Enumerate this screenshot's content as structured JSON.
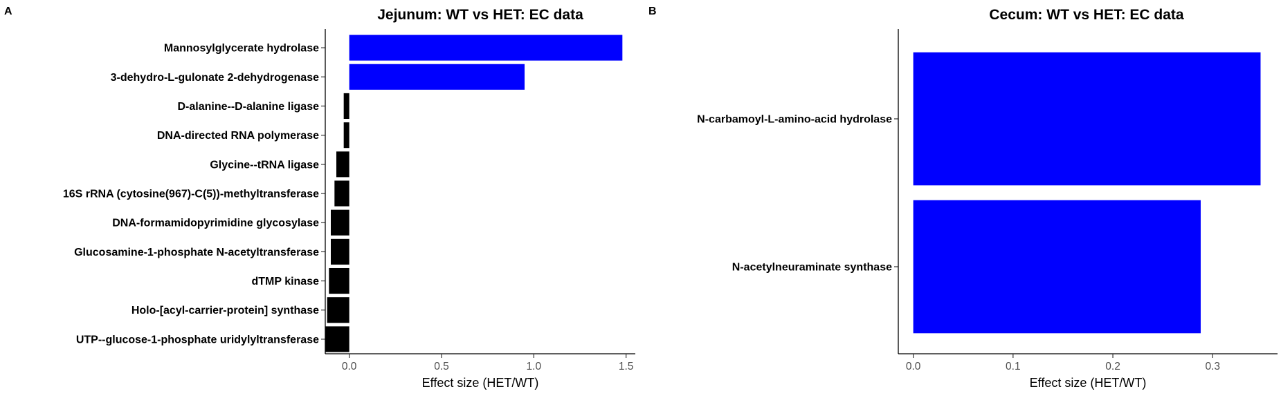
{
  "chart_data": [
    {
      "panel": "A",
      "type": "bar",
      "orientation": "horizontal",
      "title": "Jejunum: WT vs HET: EC data",
      "xlabel": "Effect size (HET/WT)",
      "ylabel": "",
      "xlim": [
        -0.13,
        1.55
      ],
      "xticks": [
        0.0,
        0.5,
        1.0,
        1.5
      ],
      "xtick_labels": [
        "0.0",
        "0.5",
        "1.0",
        "1.5"
      ],
      "grid": false,
      "categories": [
        "Mannosylglycerate hydrolase",
        "3-dehydro-L-gulonate 2-dehydrogenase",
        "D-alanine--D-alanine ligase",
        "DNA-directed RNA polymerase",
        "Glycine--tRNA ligase",
        "16S rRNA (cytosine(967)-C(5))-methyltransferase",
        "DNA-formamidopyrimidine glycosylase",
        "Glucosamine-1-phosphate N-acetyltransferase",
        "dTMP kinase",
        "Holo-[acyl-carrier-protein] synthase",
        "UTP--glucose-1-phosphate uridylyltransferase"
      ],
      "values": [
        1.48,
        0.95,
        -0.03,
        -0.03,
        -0.07,
        -0.08,
        -0.1,
        -0.1,
        -0.11,
        -0.12,
        -0.13
      ],
      "colors": [
        "#0000FF",
        "#0000FF",
        "#000000",
        "#000000",
        "#000000",
        "#000000",
        "#000000",
        "#000000",
        "#000000",
        "#000000",
        "#000000"
      ]
    },
    {
      "panel": "B",
      "type": "bar",
      "orientation": "horizontal",
      "title": "Cecum: WT vs HET: EC data",
      "xlabel": "Effect size (HET/WT)",
      "ylabel": "",
      "xlim": [
        -0.015,
        0.365
      ],
      "xticks": [
        0.0,
        0.1,
        0.2,
        0.3
      ],
      "xtick_labels": [
        "0.0",
        "0.1",
        "0.2",
        "0.3"
      ],
      "grid": false,
      "categories": [
        "N-carbamoyl-L-amino-acid hydrolase",
        "N-acetylneuraminate synthase"
      ],
      "values": [
        0.348,
        0.288
      ],
      "colors": [
        "#0000FF",
        "#0000FF"
      ]
    }
  ]
}
